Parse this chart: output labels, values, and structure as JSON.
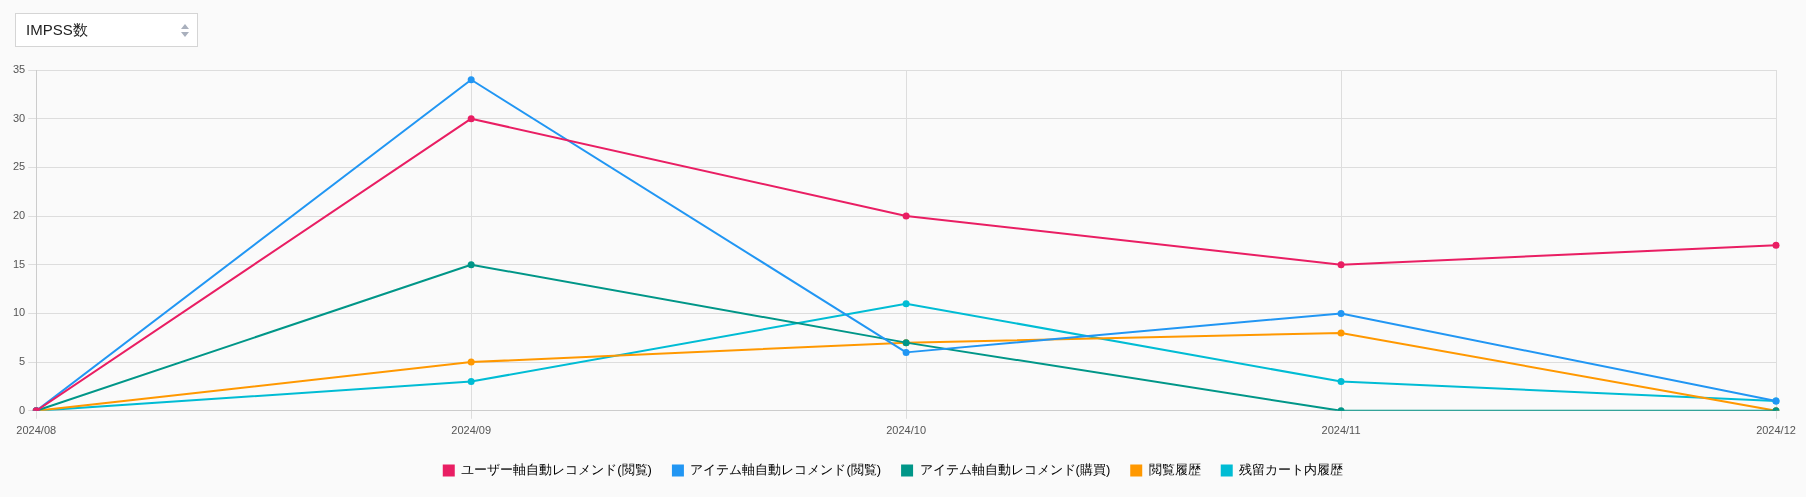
{
  "chart_data": {
    "type": "line",
    "title": "IMPSS数",
    "categories": [
      "2024/08",
      "2024/09",
      "2024/10",
      "2024/11",
      "2024/12"
    ],
    "series": [
      {
        "name": "ユーザー軸自動レコメンド(閲覧)",
        "color": "#e91e63",
        "values": [
          0,
          30,
          20,
          15,
          17
        ]
      },
      {
        "name": "アイテム軸自動レコメンド(閲覧)",
        "color": "#2196f3",
        "values": [
          0,
          34,
          6,
          10,
          1
        ]
      },
      {
        "name": "アイテム軸自動レコメンド(購買)",
        "color": "#009688",
        "values": [
          0,
          15,
          7,
          0,
          0
        ]
      },
      {
        "name": "閲覧履歴",
        "color": "#ff9800",
        "values": [
          0,
          5,
          7,
          8,
          0
        ]
      },
      {
        "name": "残留カート内履歴",
        "color": "#00bcd4",
        "values": [
          0,
          3,
          11,
          3,
          1
        ]
      }
    ],
    "ylim": [
      0,
      35
    ],
    "yticks": [
      0,
      5,
      10,
      15,
      20,
      25,
      30,
      35
    ],
    "grid": true,
    "legend": "bottom",
    "marker": "circle",
    "line_style": "solid"
  }
}
